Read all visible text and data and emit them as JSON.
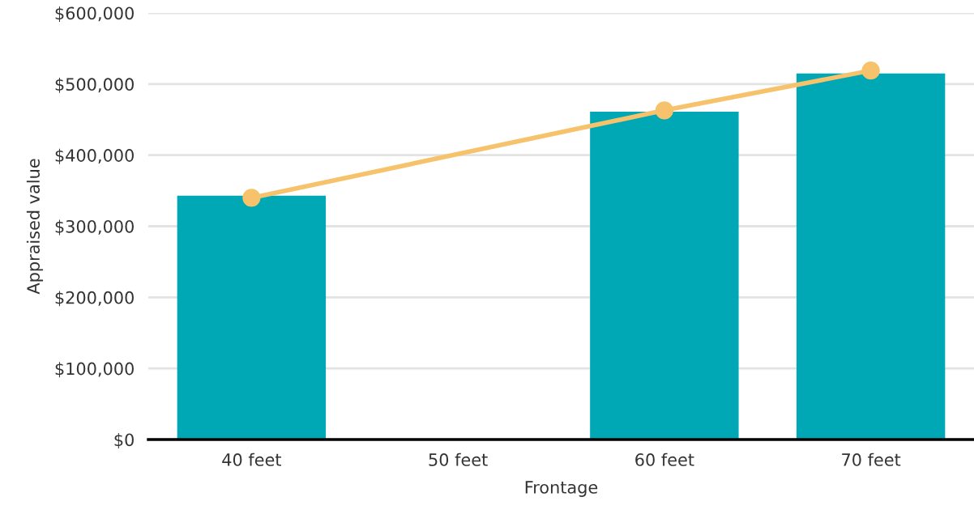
{
  "chart_data": {
    "type": "bar",
    "xlabel": "Frontage",
    "ylabel": "Appraised value",
    "categories": [
      "40 feet",
      "50 feet",
      "60 feet",
      "70 feet"
    ],
    "series": [
      {
        "color": "#00a7b5",
        "values": [
          343000,
          null,
          461000,
          515000
        ]
      },
      {
        "type": "line",
        "color": "#f6c26b",
        "marker": "circle",
        "values": [
          340000,
          null,
          463000,
          519000
        ]
      }
    ],
    "ylim": [
      0,
      600000
    ],
    "yticks": [
      {
        "value": 0,
        "label": "$0"
      },
      {
        "value": 100000,
        "label": "$100,000"
      },
      {
        "value": 200000,
        "label": "$200,000"
      },
      {
        "value": 300000,
        "label": "$300,000"
      },
      {
        "value": 400000,
        "label": "$400,000"
      },
      {
        "value": 500000,
        "label": "$500,000"
      },
      {
        "value": 600000,
        "label": "$600,000"
      }
    ],
    "grid": "y"
  }
}
